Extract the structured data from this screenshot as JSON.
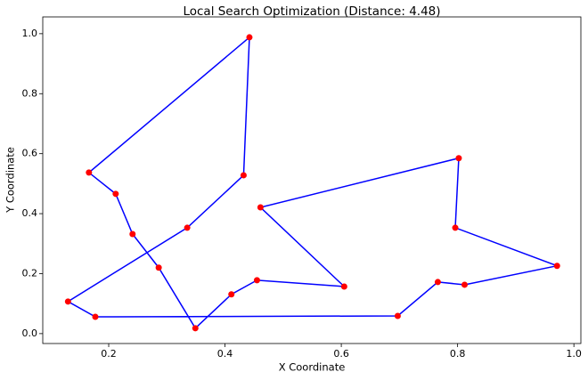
{
  "chart_data": {
    "type": "line",
    "title": "Local Search Optimization (Distance: 4.48)",
    "x_label": "X Coordinate",
    "y_label": "Y Coordinate",
    "series": [
      {
        "color": "#0000ff",
        "marker_color": "#ff0000",
        "closed": true,
        "x": [
          0.442,
          0.432,
          0.335,
          0.13,
          0.177,
          0.697,
          0.766,
          0.812,
          0.971,
          0.796,
          0.802,
          0.461,
          0.605,
          0.455,
          0.411,
          0.349,
          0.286,
          0.241,
          0.212,
          0.166
        ],
        "values": [
          0.988,
          0.528,
          0.353,
          0.107,
          0.056,
          0.059,
          0.172,
          0.163,
          0.226,
          0.353,
          0.585,
          0.421,
          0.157,
          0.178,
          0.131,
          0.018,
          0.22,
          0.332,
          0.466,
          0.537
        ]
      }
    ],
    "xlim": [
      0.0866,
      1.012
    ],
    "ylim": [
      -0.033,
      1.056
    ],
    "xticks": [
      0.2,
      0.4,
      0.6,
      0.8,
      {
        "value": 1,
        "label": "1.0"
      }
    ],
    "yticks": [
      {
        "value": 0,
        "label": "0.0"
      },
      0.2,
      0.4,
      0.6,
      0.8,
      {
        "value": 1,
        "label": "1.0"
      }
    ]
  }
}
